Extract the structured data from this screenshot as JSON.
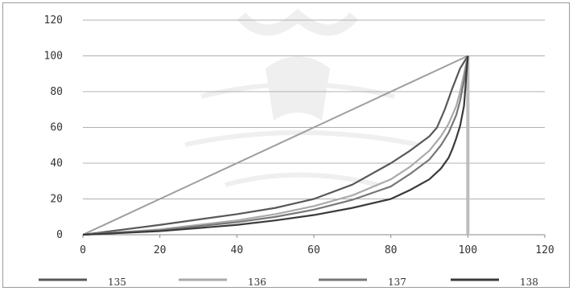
{
  "chart_data": {
    "type": "line",
    "title": "",
    "xlabel": "",
    "ylabel": "",
    "xlim": [
      0,
      120
    ],
    "ylim": [
      0,
      120
    ],
    "x_ticks": [
      "0",
      "20",
      "40",
      "60",
      "80",
      "100",
      "120"
    ],
    "y_ticks": [
      "0",
      "20",
      "40",
      "60",
      "80",
      "100",
      "120"
    ],
    "grid": "horizontal",
    "legend_position": "bottom",
    "equality_line": {
      "x": [
        0,
        100
      ],
      "y": [
        0,
        100
      ],
      "color": "#9e9e9e"
    },
    "vertical_line": {
      "x": 100,
      "y": [
        0,
        100
      ],
      "color": "#bdbdbd"
    },
    "series": [
      {
        "name": "135",
        "color": "#585858",
        "x": [
          0,
          20,
          40,
          50,
          60,
          70,
          80,
          85,
          90,
          92,
          94,
          96,
          98,
          100
        ],
        "y": [
          0,
          5.5,
          11.5,
          15,
          20,
          28,
          40,
          47,
          55,
          60,
          70,
          82,
          93,
          100
        ]
      },
      {
        "name": "136",
        "color": "#aaaaaa",
        "x": [
          0,
          20,
          40,
          50,
          60,
          70,
          80,
          85,
          90,
          93,
          95,
          97,
          98,
          99,
          100
        ],
        "y": [
          0,
          3,
          8,
          11.5,
          16,
          22,
          31,
          38,
          47,
          55,
          62,
          72,
          80,
          90,
          100
        ]
      },
      {
        "name": "137",
        "color": "#777777",
        "x": [
          0,
          20,
          40,
          50,
          60,
          70,
          80,
          85,
          90,
          93,
          95,
          97,
          98,
          99,
          100
        ],
        "y": [
          0,
          2.5,
          7,
          10,
          14,
          19.5,
          27,
          34,
          42,
          50,
          57,
          67,
          75,
          86,
          100
        ]
      },
      {
        "name": "138",
        "color": "#3a3a3a",
        "x": [
          0,
          20,
          40,
          50,
          60,
          70,
          80,
          85,
          90,
          93,
          95,
          96,
          97,
          98,
          99,
          100
        ],
        "y": [
          0,
          2,
          5.5,
          8,
          11,
          15,
          20,
          25,
          31,
          37,
          43,
          48,
          54,
          61,
          72,
          100
        ]
      }
    ]
  }
}
